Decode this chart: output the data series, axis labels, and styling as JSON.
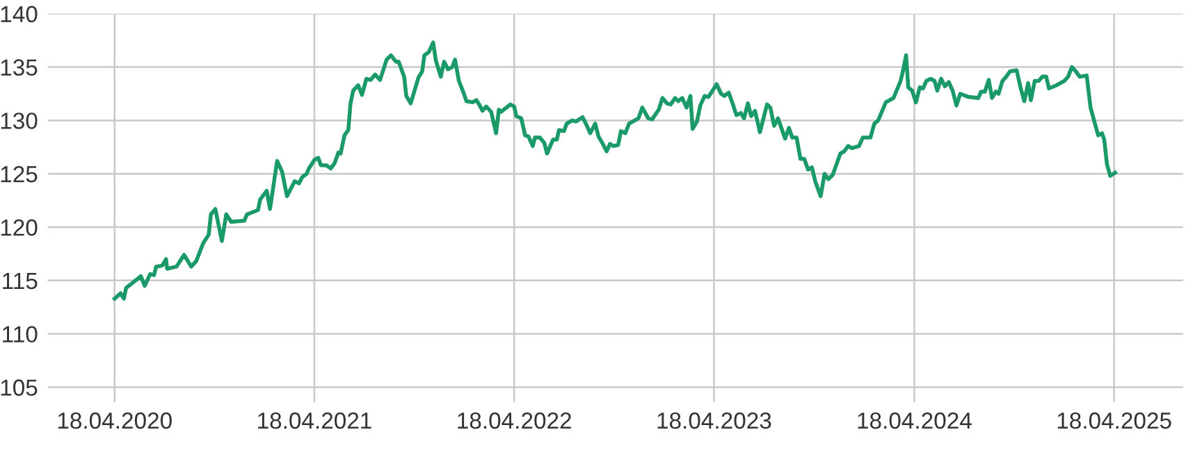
{
  "chart_data": {
    "type": "line",
    "color": "#1a9a68",
    "grid": true,
    "marker": "none",
    "line_style": "solid",
    "xlim": [
      "2019-12-18",
      "2025-08-22"
    ],
    "ylim": [
      103.6,
      140
    ],
    "yticks": [
      105,
      110,
      115,
      120,
      125,
      130,
      135,
      140
    ],
    "xticks": [
      {
        "value": "2020-04-18",
        "label": "18.04.2020"
      },
      {
        "value": "2021-04-18",
        "label": "18.04.2021"
      },
      {
        "value": "2022-04-18",
        "label": "18.04.2022"
      },
      {
        "value": "2023-04-18",
        "label": "18.04.2023"
      },
      {
        "value": "2024-04-18",
        "label": "18.04.2024"
      },
      {
        "value": "2025-04-18",
        "label": "18.04.2025"
      }
    ],
    "x": [
      "2020-04-18",
      "2020-04-29",
      "2020-05-05",
      "2020-05-09",
      "2020-06-05",
      "2020-06-12",
      "2020-06-22",
      "2020-06-29",
      "2020-07-03",
      "2020-07-14",
      "2020-07-21",
      "2020-07-23",
      "2020-08-09",
      "2020-08-23",
      "2020-09-05",
      "2020-09-14",
      "2020-09-27",
      "2020-10-07",
      "2020-10-11",
      "2020-10-19",
      "2020-10-31",
      "2020-11-08",
      "2020-11-17",
      "2020-12-11",
      "2020-12-16",
      "2021-01-05",
      "2021-01-09",
      "2021-01-21",
      "2021-01-27",
      "2021-02-04",
      "2021-02-09",
      "2021-02-18",
      "2021-02-27",
      "2021-03-13",
      "2021-03-21",
      "2021-03-27",
      "2021-04-04",
      "2021-04-08",
      "2021-04-18",
      "2021-04-25",
      "2021-04-30",
      "2021-05-10",
      "2021-05-18",
      "2021-05-25",
      "2021-06-01",
      "2021-06-05",
      "2021-06-12",
      "2021-06-19",
      "2021-06-23",
      "2021-06-28",
      "2021-07-07",
      "2021-07-14",
      "2021-07-22",
      "2021-07-30",
      "2021-08-07",
      "2021-08-16",
      "2021-08-28",
      "2021-09-05",
      "2021-09-14",
      "2021-09-19",
      "2021-09-29",
      "2021-10-03",
      "2021-10-11",
      "2021-10-25",
      "2021-11-01",
      "2021-11-05",
      "2021-11-13",
      "2021-11-21",
      "2021-11-26",
      "2021-12-05",
      "2021-12-11",
      "2021-12-18",
      "2021-12-26",
      "2021-12-31",
      "2022-01-07",
      "2022-01-14",
      "2022-01-21",
      "2022-02-01",
      "2022-02-08",
      "2022-02-13",
      "2022-02-19",
      "2022-02-26",
      "2022-03-07",
      "2022-03-16",
      "2022-03-21",
      "2022-03-25",
      "2022-04-11",
      "2022-04-18",
      "2022-04-22",
      "2022-05-01",
      "2022-05-08",
      "2022-05-14",
      "2022-05-22",
      "2022-05-26",
      "2022-06-04",
      "2022-06-12",
      "2022-06-17",
      "2022-06-28",
      "2022-07-05",
      "2022-07-09",
      "2022-07-18",
      "2022-07-23",
      "2022-08-02",
      "2022-08-09",
      "2022-08-21",
      "2022-08-28",
      "2022-09-04",
      "2022-09-13",
      "2022-09-19",
      "2022-09-27",
      "2022-10-04",
      "2022-10-10",
      "2022-10-16",
      "2022-10-25",
      "2022-10-30",
      "2022-11-07",
      "2022-11-14",
      "2022-12-01",
      "2022-12-08",
      "2022-12-19",
      "2022-12-26",
      "2023-01-07",
      "2023-01-14",
      "2023-01-22",
      "2023-01-29",
      "2023-02-06",
      "2023-02-12",
      "2023-02-19",
      "2023-02-27",
      "2023-03-06",
      "2023-03-10",
      "2023-03-18",
      "2023-03-24",
      "2023-04-01",
      "2023-04-08",
      "2023-04-23",
      "2023-05-01",
      "2023-05-07",
      "2023-05-15",
      "2023-05-22",
      "2023-05-29",
      "2023-06-06",
      "2023-06-12",
      "2023-06-19",
      "2023-06-25",
      "2023-07-02",
      "2023-07-11",
      "2023-07-24",
      "2023-07-30",
      "2023-08-06",
      "2023-08-13",
      "2023-08-26",
      "2023-09-02",
      "2023-09-08",
      "2023-09-16",
      "2023-09-23",
      "2023-09-30",
      "2023-10-07",
      "2023-10-14",
      "2023-10-20",
      "2023-10-30",
      "2023-11-06",
      "2023-11-13",
      "2023-11-21",
      "2023-12-05",
      "2023-12-12",
      "2023-12-19",
      "2023-12-26",
      "2024-01-08",
      "2024-01-15",
      "2024-01-29",
      "2024-02-05",
      "2024-02-12",
      "2024-02-26",
      "2024-03-11",
      "2024-03-24",
      "2024-03-29",
      "2024-04-03",
      "2024-04-07",
      "2024-04-14",
      "2024-04-21",
      "2024-04-28",
      "2024-05-04",
      "2024-05-10",
      "2024-05-18",
      "2024-05-25",
      "2024-05-30",
      "2024-06-06",
      "2024-06-13",
      "2024-06-20",
      "2024-06-27",
      "2024-07-04",
      "2024-07-11",
      "2024-07-26",
      "2024-08-13",
      "2024-08-18",
      "2024-08-25",
      "2024-09-01",
      "2024-09-07",
      "2024-09-14",
      "2024-09-19",
      "2024-09-26",
      "2024-10-03",
      "2024-10-10",
      "2024-10-22",
      "2024-10-29",
      "2024-11-05",
      "2024-11-12",
      "2024-11-17",
      "2024-11-24",
      "2024-12-01",
      "2024-12-08",
      "2024-12-15",
      "2024-12-20",
      "2025-01-03",
      "2025-01-17",
      "2025-01-24",
      "2025-01-31",
      "2025-02-07",
      "2025-02-14",
      "2025-02-27",
      "2025-03-06",
      "2025-03-13",
      "2025-03-20",
      "2025-03-27",
      "2025-03-31",
      "2025-04-05",
      "2025-04-11",
      "2025-04-20"
    ],
    "values": [
      113.3,
      113.8,
      113.3,
      114.3,
      115.4,
      114.5,
      115.6,
      115.5,
      116.3,
      116.4,
      117.0,
      116.1,
      116.3,
      117.4,
      116.3,
      116.8,
      118.5,
      119.3,
      121.2,
      121.7,
      118.7,
      121.2,
      120.5,
      120.6,
      121.2,
      121.6,
      122.6,
      123.4,
      121.7,
      124.5,
      126.2,
      125.2,
      122.9,
      124.3,
      124.1,
      124.7,
      125.0,
      125.5,
      126.3,
      126.5,
      125.8,
      125.8,
      125.5,
      126.0,
      127.0,
      126.9,
      128.6,
      129.1,
      131.6,
      132.8,
      133.3,
      132.4,
      133.9,
      133.8,
      134.3,
      133.8,
      135.7,
      136.1,
      135.5,
      135.5,
      134.1,
      132.3,
      131.6,
      134.0,
      134.6,
      136.1,
      136.4,
      137.3,
      135.6,
      134.1,
      135.5,
      134.8,
      135.0,
      135.7,
      133.7,
      132.8,
      131.8,
      131.7,
      131.9,
      131.5,
      130.9,
      131.3,
      130.8,
      128.8,
      131.0,
      130.8,
      131.5,
      131.3,
      130.4,
      130.2,
      128.6,
      128.5,
      127.6,
      128.4,
      128.4,
      127.9,
      126.9,
      128.2,
      128.2,
      129.1,
      129.0,
      129.7,
      130.0,
      129.9,
      130.3,
      129.6,
      128.8,
      129.7,
      128.5,
      127.8,
      127.1,
      127.8,
      127.6,
      127.7,
      129.0,
      128.8,
      129.7,
      130.2,
      131.2,
      130.2,
      130.1,
      131.0,
      132.1,
      131.6,
      131.5,
      132.1,
      131.8,
      132.1,
      131.2,
      132.3,
      129.2,
      129.9,
      131.4,
      132.3,
      132.2,
      133.4,
      132.5,
      132.3,
      132.6,
      131.6,
      130.5,
      130.7,
      130.2,
      131.6,
      130.4,
      130.9,
      128.9,
      131.5,
      131.2,
      129.5,
      130.2,
      128.3,
      129.3,
      128.4,
      128.4,
      126.4,
      126.4,
      125.4,
      125.6,
      124.3,
      122.9,
      125.0,
      124.5,
      124.9,
      126.9,
      127.1,
      127.6,
      127.4,
      127.6,
      128.4,
      128.4,
      129.7,
      130.0,
      131.7,
      132.1,
      133.7,
      134.8,
      136.1,
      133.1,
      132.8,
      131.7,
      133.1,
      133.0,
      133.7,
      133.9,
      133.7,
      132.8,
      133.9,
      133.2,
      133.6,
      132.8,
      131.4,
      132.5,
      132.2,
      132.1,
      132.7,
      132.7,
      133.8,
      132.1,
      132.7,
      132.5,
      133.7,
      134.1,
      134.6,
      134.7,
      133.1,
      131.8,
      133.5,
      131.9,
      133.7,
      133.7,
      134.1,
      134.1,
      133.0,
      133.3,
      133.7,
      134.1,
      135.0,
      134.6,
      134.1,
      134.2,
      131.2,
      129.9,
      128.6,
      128.8,
      128.2,
      125.9,
      124.8,
      125.1
    ]
  }
}
